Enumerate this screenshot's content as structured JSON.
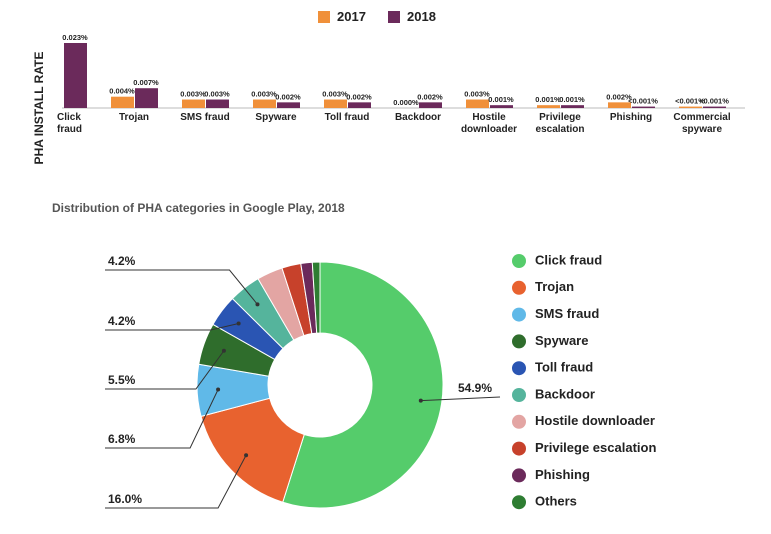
{
  "chart_data": [
    {
      "type": "bar",
      "y_label": "PHA INSTALL RATE",
      "categories": [
        "Click fraud",
        "Trojan",
        "SMS fraud",
        "Spyware",
        "Toll fraud",
        "Backdoor",
        "Hostile downloader",
        "Privilege escalation",
        "Phishing",
        "Commercial spyware"
      ],
      "series": [
        {
          "name": "2017",
          "color": "#f0903a",
          "values": [
            null,
            0.004,
            0.003,
            0.003,
            0.003,
            0,
            0.003,
            0.001,
            0.002,
            0.0005
          ],
          "value_labels": [
            null,
            "0.004%",
            "0.003%",
            "0.003%",
            "0.003%",
            "0.000%",
            "0.003%",
            "0.001%",
            "0.002%",
            "<0.001%"
          ]
        },
        {
          "name": "2018",
          "color": "#6b2a5b",
          "values": [
            0.023,
            0.007,
            0.003,
            0.002,
            0.002,
            0.002,
            0.001,
            0.001,
            0.0005,
            0.0005
          ],
          "value_labels": [
            "0.023%",
            "0.007%",
            "0.003%",
            "0.002%",
            "0.002%",
            "0.002%",
            "0.001%",
            "0.001%",
            "<0.001%",
            "<0.001%"
          ]
        }
      ]
    },
    {
      "type": "donut",
      "title": "Distribution of PHA categories in Google Play, 2018",
      "categories": [
        "Click fraud",
        "Trojan",
        "SMS fraud",
        "Spyware",
        "Toll fraud",
        "Backdoor",
        "Hostile downloader",
        "Privilege escalation",
        "Phishing",
        "Others"
      ],
      "values": [
        54.9,
        16.0,
        6.8,
        5.5,
        4.2,
        4.2,
        3.4,
        2.5,
        1.5,
        1.0
      ],
      "value_labels": [
        "54.9%",
        "16.0%",
        "6.8%",
        "5.5%",
        "4.2%",
        "4.2%",
        null,
        null,
        null,
        null
      ],
      "colors": [
        "#55cc6b",
        "#e8622f",
        "#60b9e8",
        "#2f6d2c",
        "#2a55b3",
        "#55b49c",
        "#e3a5a3",
        "#c7412b",
        "#6b2a5b",
        "#2e7d32"
      ]
    }
  ]
}
